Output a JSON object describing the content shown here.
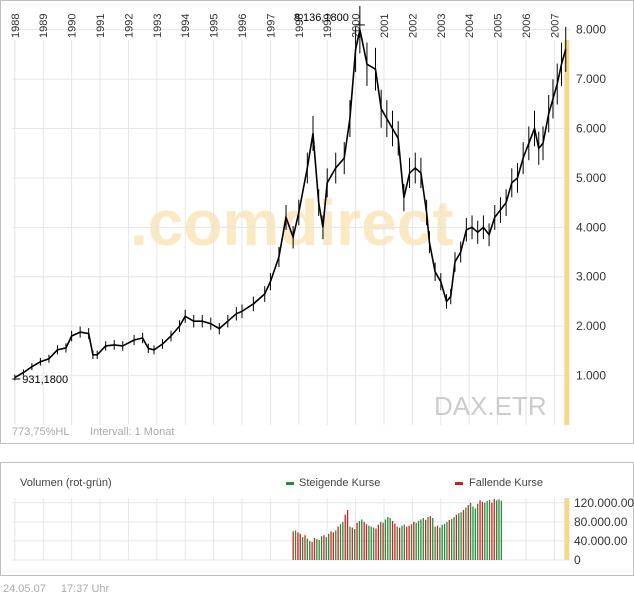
{
  "chart_data": [
    {
      "type": "line",
      "style": "candlestick-monthly",
      "watermark": ".comdirect",
      "ticker": "DAX.ETR",
      "footer_left": "773,75%HL",
      "interval": "Intervall: 1 Monat",
      "x_ticks": [
        "1988",
        "1989",
        "1990",
        "1991",
        "1992",
        "1993",
        "1994",
        "1995",
        "1996",
        "1997",
        "1998",
        "1999",
        "2000",
        "2001",
        "2002",
        "2003",
        "2004",
        "2005",
        "2006",
        "2007"
      ],
      "y_ticks": [
        "1.000",
        "2.000",
        "3.000",
        "4.000",
        "5.000",
        "6.000",
        "7.000",
        "8.000"
      ],
      "ylim": [
        0,
        8600
      ],
      "xlim": [
        1987.9,
        2007.55
      ],
      "max_label": "8.136,1800",
      "max_point": {
        "x": 2000.15,
        "y": 8136.18
      },
      "min_label": "931,1800",
      "min_point": {
        "x": 1988.05,
        "y": 931.18
      },
      "grid": true,
      "highlight_color": "#f5d98a",
      "series": [
        {
          "values": [
            [
              1988.0,
              960
            ],
            [
              1988.3,
              1060
            ],
            [
              1988.6,
              1180
            ],
            [
              1988.9,
              1280
            ],
            [
              1989.2,
              1340
            ],
            [
              1989.5,
              1520
            ],
            [
              1989.8,
              1560
            ],
            [
              1990.0,
              1800
            ],
            [
              1990.3,
              1880
            ],
            [
              1990.6,
              1850
            ],
            [
              1990.75,
              1420
            ],
            [
              1990.9,
              1420
            ],
            [
              1991.2,
              1600
            ],
            [
              1991.5,
              1620
            ],
            [
              1991.8,
              1600
            ],
            [
              1992.2,
              1720
            ],
            [
              1992.5,
              1760
            ],
            [
              1992.7,
              1550
            ],
            [
              1992.9,
              1520
            ],
            [
              1993.2,
              1640
            ],
            [
              1993.5,
              1800
            ],
            [
              1993.8,
              2000
            ],
            [
              1994.0,
              2200
            ],
            [
              1994.3,
              2100
            ],
            [
              1994.6,
              2100
            ],
            [
              1994.9,
              2050
            ],
            [
              1995.2,
              1950
            ],
            [
              1995.5,
              2100
            ],
            [
              1995.8,
              2250
            ],
            [
              1996.0,
              2300
            ],
            [
              1996.4,
              2450
            ],
            [
              1996.8,
              2650
            ],
            [
              1997.0,
              2900
            ],
            [
              1997.3,
              3400
            ],
            [
              1997.55,
              4200
            ],
            [
              1997.8,
              3800
            ],
            [
              1998.0,
              4300
            ],
            [
              1998.3,
              5200
            ],
            [
              1998.5,
              5900
            ],
            [
              1998.7,
              4500
            ],
            [
              1998.85,
              4000
            ],
            [
              1999.0,
              4900
            ],
            [
              1999.3,
              5200
            ],
            [
              1999.6,
              5400
            ],
            [
              1999.8,
              6200
            ],
            [
              2000.0,
              7600
            ],
            [
              2000.15,
              8000
            ],
            [
              2000.4,
              7300
            ],
            [
              2000.7,
              7200
            ],
            [
              2000.9,
              6400
            ],
            [
              2001.1,
              6200
            ],
            [
              2001.3,
              6000
            ],
            [
              2001.5,
              5800
            ],
            [
              2001.7,
              4600
            ],
            [
              2001.9,
              5100
            ],
            [
              2002.1,
              5200
            ],
            [
              2002.3,
              5100
            ],
            [
              2002.5,
              4300
            ],
            [
              2002.6,
              3700
            ],
            [
              2002.8,
              3100
            ],
            [
              2003.0,
              2900
            ],
            [
              2003.2,
              2500
            ],
            [
              2003.35,
              2600
            ],
            [
              2003.5,
              3300
            ],
            [
              2003.7,
              3500
            ],
            [
              2003.9,
              3950
            ],
            [
              2004.1,
              4000
            ],
            [
              2004.3,
              3900
            ],
            [
              2004.5,
              4000
            ],
            [
              2004.7,
              3850
            ],
            [
              2004.9,
              4200
            ],
            [
              2005.1,
              4350
            ],
            [
              2005.3,
              4500
            ],
            [
              2005.5,
              4900
            ],
            [
              2005.7,
              5000
            ],
            [
              2005.9,
              5400
            ],
            [
              2006.1,
              5700
            ],
            [
              2006.3,
              6000
            ],
            [
              2006.45,
              5600
            ],
            [
              2006.6,
              5700
            ],
            [
              2006.8,
              6300
            ],
            [
              2006.95,
              6600
            ],
            [
              2007.1,
              6900
            ],
            [
              2007.25,
              7300
            ],
            [
              2007.4,
              7600
            ]
          ]
        }
      ]
    },
    {
      "type": "bar",
      "title": "Volumen (rot-grün)",
      "legend": [
        {
          "name": "Steigende Kurse",
          "color": "#2a8a3a"
        },
        {
          "name": "Fallende Kurse",
          "color": "#cc2222"
        }
      ],
      "y_ticks": [
        "120.000.00",
        "80.000.00",
        "40.000.00",
        "0"
      ],
      "ylim": [
        0,
        130000
      ],
      "x_start": 1997.8,
      "x_step": 0.0833,
      "values": [
        60000,
        62000,
        58000,
        55000,
        48000,
        52000,
        45000,
        40000,
        38000,
        46000,
        44000,
        42000,
        50000,
        52000,
        48000,
        55000,
        60000,
        58000,
        62000,
        70000,
        75000,
        80000,
        95000,
        105000,
        70000,
        68000,
        65000,
        78000,
        82000,
        85000,
        80000,
        75000,
        72000,
        70000,
        68000,
        66000,
        74000,
        80000,
        78000,
        85000,
        90000,
        88000,
        82000,
        76000,
        70000,
        68000,
        72000,
        74000,
        70000,
        72000,
        75000,
        80000,
        78000,
        82000,
        85000,
        88000,
        84000,
        90000,
        92000,
        88000,
        70000,
        72000,
        68000,
        74000,
        76000,
        80000,
        84000,
        86000,
        90000,
        95000,
        98000,
        100000,
        105000,
        110000,
        115000,
        120000,
        112000,
        108000,
        118000,
        125000,
        122000,
        120000,
        124000,
        126000,
        120000,
        128000,
        125000,
        127000,
        124000
      ],
      "colors": "rgrrgrggrrgggrggrrgrggrrgrgrggrrgggrrgrgggrrgrggrrgrggggrgrggrggggrggrggrgrggggrrgggrrggg"
    }
  ],
  "footer": {
    "date": "24.05.07",
    "time": "17:37 Uhr"
  }
}
